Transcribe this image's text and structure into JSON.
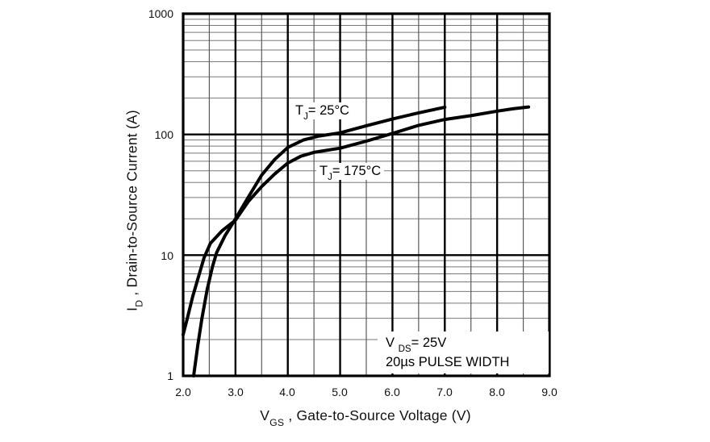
{
  "chart_data": {
    "type": "line",
    "title": "",
    "x_axis": {
      "label": {
        "pre": "V",
        "sub": "GS",
        "post": " , Gate-to-Source Voltage (V)"
      },
      "scale": "linear",
      "min": 2.0,
      "max": 9.0,
      "ticks": [
        2.0,
        3.0,
        4.0,
        5.0,
        6.0,
        7.0,
        8.0,
        9.0
      ],
      "tick_labels": [
        "2.0",
        "3.0",
        "4.0",
        "5.0",
        "6.0",
        "7.0",
        "8.0",
        "9.0"
      ],
      "minor_tick_step": 0.5
    },
    "y_axis": {
      "label": {
        "pre": "I",
        "sub": "D",
        "post": " , Drain-to-Source Current (A)"
      },
      "scale": "log",
      "min": 1,
      "max": 1000,
      "ticks": [
        1000,
        100,
        10,
        1
      ],
      "tick_labels": [
        "1000",
        "100",
        "10",
        "1"
      ]
    },
    "grid": true,
    "colors": {
      "curve": "#000000",
      "grid_major": "#000000",
      "grid_minor": "#787878",
      "background": "#ffffff",
      "text": "#111111"
    },
    "series": [
      {
        "id": "tj-25c",
        "name": "TJ = 25°C",
        "label": {
          "pre": "T",
          "sub": "J",
          "post": "= 25°C"
        },
        "points": [
          [
            2.2,
            1.0
          ],
          [
            2.28,
            1.8
          ],
          [
            2.36,
            3.0
          ],
          [
            2.46,
            5.2
          ],
          [
            2.56,
            8.0
          ],
          [
            2.64,
            10.5
          ],
          [
            2.8,
            14.5
          ],
          [
            3.0,
            20
          ],
          [
            3.2,
            28
          ],
          [
            3.5,
            46
          ],
          [
            3.75,
            62
          ],
          [
            4.0,
            78
          ],
          [
            4.3,
            90
          ],
          [
            4.6,
            97
          ],
          [
            5.0,
            103
          ],
          [
            5.5,
            118
          ],
          [
            6.0,
            134
          ],
          [
            6.5,
            151
          ],
          [
            7.0,
            168
          ]
        ]
      },
      {
        "id": "tj-175c",
        "name": "TJ = 175°C",
        "label": {
          "pre": "T",
          "sub": "J",
          "post": "= 175°C"
        },
        "points": [
          [
            2.0,
            2.2
          ],
          [
            2.08,
            3.0
          ],
          [
            2.18,
            4.5
          ],
          [
            2.3,
            6.8
          ],
          [
            2.4,
            9.5
          ],
          [
            2.52,
            12.5
          ],
          [
            2.75,
            16
          ],
          [
            3.0,
            19.5
          ],
          [
            3.25,
            28
          ],
          [
            3.5,
            37
          ],
          [
            3.75,
            47
          ],
          [
            4.0,
            58
          ],
          [
            4.25,
            66
          ],
          [
            4.5,
            71
          ],
          [
            5.0,
            77
          ],
          [
            5.5,
            88
          ],
          [
            6.0,
            102
          ],
          [
            6.5,
            119
          ],
          [
            7.0,
            133
          ],
          [
            7.5,
            143
          ],
          [
            8.0,
            156
          ],
          [
            8.3,
            163
          ],
          [
            8.6,
            169
          ]
        ]
      }
    ],
    "annotations": {
      "line1": {
        "pre": "V ",
        "sub": "DS",
        "post": "= 25V"
      },
      "line2": "20µs PULSE WIDTH"
    }
  }
}
